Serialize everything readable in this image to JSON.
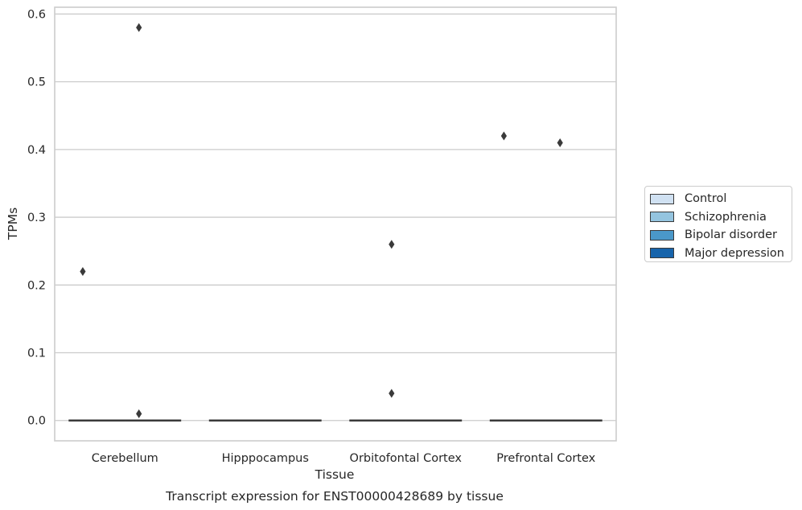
{
  "chart_data": {
    "type": "box",
    "xlabel": "Tissue",
    "ylabel": "TPMs",
    "caption": "Transcript expression for ENST00000428689 by tissue",
    "categories": [
      "Cerebellum",
      "Hipppocampus",
      "Orbitofontal Cortex",
      "Prefrontal Cortex"
    ],
    "ylim": [
      -0.03,
      0.61
    ],
    "yticks": [
      0.0,
      0.1,
      0.2,
      0.3,
      0.4,
      0.5,
      0.6
    ],
    "ytick_labels": [
      "0.0",
      "0.1",
      "0.2",
      "0.3",
      "0.4",
      "0.5",
      "0.6"
    ],
    "grid": "horizontal",
    "legend_position": "right",
    "series": [
      {
        "name": "Control",
        "color": "#d0e1f2",
        "boxes": [
          {
            "median": 0,
            "q1": 0,
            "q3": 0
          },
          {
            "median": 0,
            "q1": 0,
            "q3": 0
          },
          {
            "median": 0,
            "q1": 0,
            "q3": 0
          },
          {
            "median": 0,
            "q1": 0,
            "q3": 0
          }
        ],
        "outliers": [
          [
            0.22
          ],
          [],
          [],
          [
            0.42
          ]
        ]
      },
      {
        "name": "Schizophrenia",
        "color": "#94c4df",
        "boxes": [
          {
            "median": 0,
            "q1": 0,
            "q3": 0
          },
          {
            "median": 0,
            "q1": 0,
            "q3": 0
          },
          {
            "median": 0,
            "q1": 0,
            "q3": 0
          },
          {
            "median": 0,
            "q1": 0,
            "q3": 0
          }
        ],
        "outliers": [
          [],
          [],
          [
            0.04,
            0.26
          ],
          []
        ]
      },
      {
        "name": "Bipolar disorder",
        "color": "#4a98c9",
        "boxes": [
          {
            "median": 0,
            "q1": 0,
            "q3": 0
          },
          {
            "median": 0,
            "q1": 0,
            "q3": 0
          },
          {
            "median": 0,
            "q1": 0,
            "q3": 0
          },
          {
            "median": 0,
            "q1": 0,
            "q3": 0
          }
        ],
        "outliers": [
          [
            0.01,
            0.58
          ],
          [],
          [],
          [
            0.41
          ]
        ]
      },
      {
        "name": "Major depression",
        "color": "#1764ab",
        "boxes": [
          {
            "median": 0,
            "q1": 0,
            "q3": 0
          },
          {
            "median": 0,
            "q1": 0,
            "q3": 0
          },
          {
            "median": 0,
            "q1": 0,
            "q3": 0
          },
          {
            "median": 0,
            "q1": 0,
            "q3": 0
          }
        ],
        "outliers": [
          [],
          [],
          [],
          []
        ]
      }
    ],
    "styles": {
      "grid_color": "#cccccc",
      "spine_color": "#cccccc",
      "marker_color": "#3a3a3a",
      "median_color": "#3a3a3a"
    }
  }
}
